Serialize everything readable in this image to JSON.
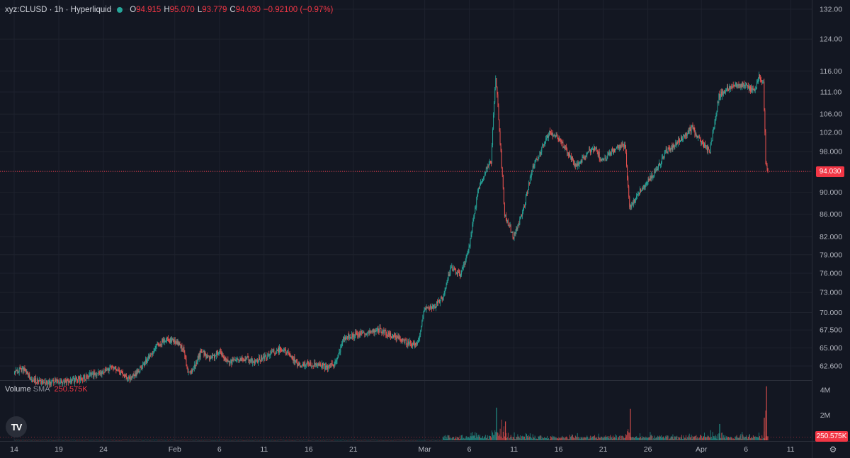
{
  "header": {
    "title": "xyz:CLUSD · 1h · Hyperliquid",
    "open_label": "O",
    "open": "94.915",
    "high_label": "H",
    "high": "95.070",
    "low_label": "L",
    "low": "93.779",
    "close_label": "C",
    "close": "94.030",
    "change": "−0.92100 (−0.97%)"
  },
  "volume_legend": {
    "label": "Volume",
    "indicator": "SMA",
    "value": "250.575K"
  },
  "last_price_tag": "94.030",
  "volume_tag": "250.575K",
  "logo_text": "TV",
  "colors": {
    "up": "#26a69a",
    "down": "#ef5350",
    "background": "#131722",
    "price_line": "#f23645"
  },
  "icons": {
    "settings": "gear-icon",
    "logo": "tradingview-logo-icon"
  },
  "chart_data": {
    "type": "candlestick",
    "y_axis_ticks": [
      {
        "value": 132,
        "label": "132.00"
      },
      {
        "value": 124,
        "label": "124.00"
      },
      {
        "value": 116,
        "label": "116.00"
      },
      {
        "value": 111,
        "label": "111.00"
      },
      {
        "value": 106,
        "label": "106.00"
      },
      {
        "value": 102,
        "label": "102.00"
      },
      {
        "value": 98,
        "label": "98.000"
      },
      {
        "value": 94,
        "label": "94.000"
      },
      {
        "value": 90,
        "label": "90.000"
      },
      {
        "value": 86,
        "label": "86.000"
      },
      {
        "value": 82,
        "label": "82.000"
      },
      {
        "value": 79,
        "label": "79.000"
      },
      {
        "value": 76,
        "label": "76.000"
      },
      {
        "value": 73,
        "label": "73.000"
      },
      {
        "value": 70,
        "label": "70.000"
      },
      {
        "value": 67.5,
        "label": "67.500"
      },
      {
        "value": 65,
        "label": "65.000"
      },
      {
        "value": 62.6,
        "label": "62.600"
      }
    ],
    "x_axis_ticks": [
      {
        "date": "2026-01-14",
        "label": "14"
      },
      {
        "date": "2026-01-19",
        "label": "19"
      },
      {
        "date": "2026-01-24",
        "label": "24"
      },
      {
        "date": "2026-02-01",
        "label": "Feb"
      },
      {
        "date": "2026-02-06",
        "label": "6"
      },
      {
        "date": "2026-02-11",
        "label": "11"
      },
      {
        "date": "2026-02-16",
        "label": "16"
      },
      {
        "date": "2026-02-21",
        "label": "21"
      },
      {
        "date": "2026-03-01",
        "label": "Mar"
      },
      {
        "date": "2026-03-06",
        "label": "6"
      },
      {
        "date": "2026-03-11",
        "label": "11"
      },
      {
        "date": "2026-03-16",
        "label": "16"
      },
      {
        "date": "2026-03-21",
        "label": "21"
      },
      {
        "date": "2026-03-26",
        "label": "26"
      },
      {
        "date": "2026-04-01",
        "label": "Apr"
      },
      {
        "date": "2026-04-06",
        "label": "6"
      },
      {
        "date": "2026-04-11",
        "label": "11"
      }
    ],
    "volume_ticks": [
      {
        "value": 4000000,
        "label": "4M"
      },
      {
        "value": 2000000,
        "label": "2M"
      }
    ],
    "last_price": 94.03,
    "volume_sma": 250575,
    "price_path": [
      [
        "2026-01-14",
        61.5
      ],
      [
        "2026-01-15",
        62.3
      ],
      [
        "2026-01-16",
        60.8
      ],
      [
        "2026-01-18",
        60.5
      ],
      [
        "2026-01-21",
        60.8
      ],
      [
        "2026-01-23",
        61.5
      ],
      [
        "2026-01-25",
        62.4
      ],
      [
        "2026-01-26",
        61.8
      ],
      [
        "2026-01-27",
        61.0
      ],
      [
        "2026-01-28",
        62.0
      ],
      [
        "2026-01-29",
        63.5
      ],
      [
        "2026-01-30",
        65.5
      ],
      [
        "2026-01-31",
        66.0
      ],
      [
        "2026-02-01",
        66.0
      ],
      [
        "2026-02-02",
        65.0
      ],
      [
        "2026-02-02T12",
        61.8
      ],
      [
        "2026-02-03",
        62.0
      ],
      [
        "2026-02-04",
        64.5
      ],
      [
        "2026-02-05",
        63.5
      ],
      [
        "2026-02-06",
        64.5
      ],
      [
        "2026-02-07",
        63.0
      ],
      [
        "2026-02-09",
        63.6
      ],
      [
        "2026-02-10",
        63.2
      ],
      [
        "2026-02-12",
        64.4
      ],
      [
        "2026-02-13",
        65.0
      ],
      [
        "2026-02-14",
        63.8
      ],
      [
        "2026-02-15",
        62.7
      ],
      [
        "2026-02-17",
        63.0
      ],
      [
        "2026-02-18",
        62.5
      ],
      [
        "2026-02-19",
        62.8
      ],
      [
        "2026-02-20",
        66.5
      ],
      [
        "2026-02-22",
        67.0
      ],
      [
        "2026-02-24",
        67.6
      ],
      [
        "2026-02-25",
        66.8
      ],
      [
        "2026-02-26",
        66.6
      ],
      [
        "2026-02-27",
        65.8
      ],
      [
        "2026-02-28",
        65.3
      ],
      [
        "2026-02-28T12",
        66.8
      ],
      [
        "2026-03-01",
        70.5
      ],
      [
        "2026-03-01T12",
        70.8
      ],
      [
        "2026-03-02",
        70.8
      ],
      [
        "2026-03-03",
        72.0
      ],
      [
        "2026-03-04",
        77.0
      ],
      [
        "2026-03-05",
        75.5
      ],
      [
        "2026-03-06",
        80.0
      ],
      [
        "2026-03-07",
        90.0
      ],
      [
        "2026-03-08",
        95.0
      ],
      [
        "2026-03-08T12",
        96.0
      ],
      [
        "2026-03-09",
        115.0
      ],
      [
        "2026-03-09T12",
        100.0
      ],
      [
        "2026-03-10",
        86.0
      ],
      [
        "2026-03-11",
        82.0
      ],
      [
        "2026-03-12",
        86.0
      ],
      [
        "2026-03-13",
        94.0
      ],
      [
        "2026-03-14",
        98.0
      ],
      [
        "2026-03-15",
        102.0
      ],
      [
        "2026-03-16",
        101.0
      ],
      [
        "2026-03-17",
        98.0
      ],
      [
        "2026-03-18",
        95.0
      ],
      [
        "2026-03-19",
        97.0
      ],
      [
        "2026-03-20",
        99.0
      ],
      [
        "2026-03-21",
        96.0
      ],
      [
        "2026-03-22",
        98.0
      ],
      [
        "2026-03-23",
        99.0
      ],
      [
        "2026-03-23T12",
        99.5
      ],
      [
        "2026-03-24",
        87.0
      ],
      [
        "2026-03-25",
        90.0
      ],
      [
        "2026-03-26",
        92.0
      ],
      [
        "2026-03-27",
        94.0
      ],
      [
        "2026-03-28",
        98.0
      ],
      [
        "2026-03-29",
        99.0
      ],
      [
        "2026-03-30",
        101.0
      ],
      [
        "2026-03-31",
        103.0
      ],
      [
        "2026-04-01",
        100.0
      ],
      [
        "2026-04-02",
        98.0
      ],
      [
        "2026-04-03",
        110.0
      ],
      [
        "2026-04-04",
        112.0
      ],
      [
        "2026-04-05",
        113.0
      ],
      [
        "2026-04-06",
        112.5
      ],
      [
        "2026-04-07",
        111.0
      ],
      [
        "2026-04-07T12",
        115.0
      ],
      [
        "2026-04-08",
        113.0
      ],
      [
        "2026-04-08T06",
        96.0
      ],
      [
        "2026-04-08T12",
        94.03
      ]
    ]
  }
}
